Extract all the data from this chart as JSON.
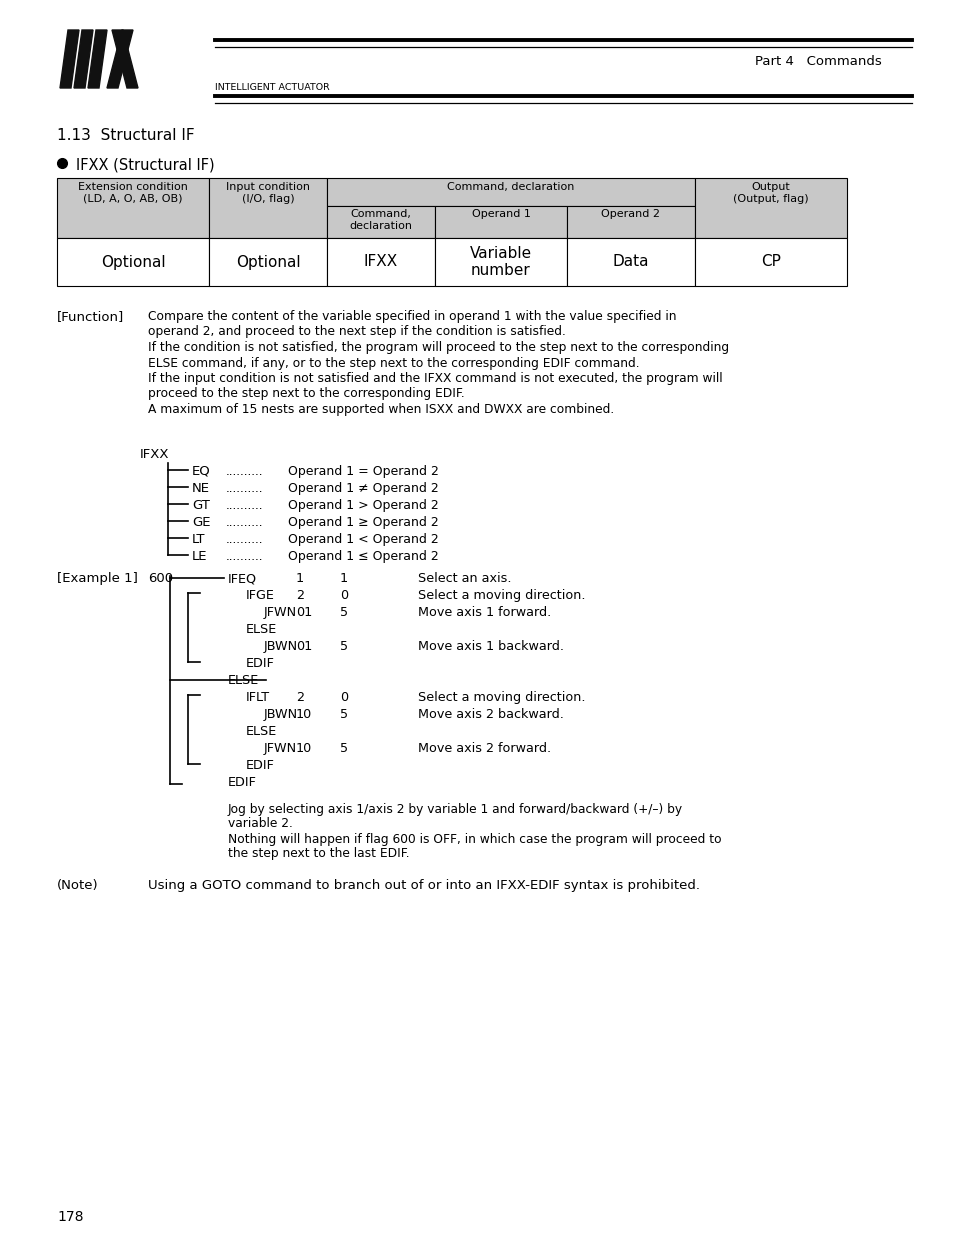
{
  "bg_color": "#ffffff",
  "title_part": "Part 4   Commands",
  "section": "1.13  Structural IF",
  "bullet_title": "IFXX (Structural IF)",
  "table_data_row": [
    "Optional",
    "Optional",
    "IFXX",
    "Variable\nnumber",
    "Data",
    "CP"
  ],
  "function_label": "[Function]",
  "function_text": [
    "Compare the content of the variable specified in operand 1 with the value specified in",
    "operand 2, and proceed to the next step if the condition is satisfied.",
    "If the condition is not satisfied, the program will proceed to the step next to the corresponding",
    "ELSE command, if any, or to the step next to the corresponding EDIF command.",
    "If the input condition is not satisfied and the IFXX command is not executed, the program will",
    "proceed to the step next to the corresponding EDIF.",
    "A maximum of 15 nests are supported when ISXX and DWXX are combined."
  ],
  "ifxx_label": "IFXX",
  "ifxx_items": [
    [
      "EQ",
      "..........",
      "Operand 1 = Operand 2"
    ],
    [
      "NE",
      "..........",
      "Operand 1 ≠ Operand 2"
    ],
    [
      "GT",
      "..........",
      "Operand 1 > Operand 2"
    ],
    [
      "GE",
      "..........",
      "Operand 1 ≥ Operand 2"
    ],
    [
      "LT",
      "..........",
      "Operand 1 < Operand 2"
    ],
    [
      "LE",
      "..........",
      "Operand 1 ≤ Operand 2"
    ]
  ],
  "example_label": "[Example 1]",
  "example_lines": [
    {
      "indent": 0,
      "flag": "600",
      "cmd": "IFEQ",
      "op1": "1",
      "op2": "1",
      "comment": "Select an axis."
    },
    {
      "indent": 1,
      "flag": "",
      "cmd": "IFGE",
      "op1": "2",
      "op2": "0",
      "comment": "Select a moving direction."
    },
    {
      "indent": 2,
      "flag": "",
      "cmd": "JFWN",
      "op1": "01",
      "op2": "5",
      "comment": "Move axis 1 forward."
    },
    {
      "indent": 1,
      "flag": "",
      "cmd": "ELSE",
      "op1": "",
      "op2": "",
      "comment": ""
    },
    {
      "indent": 2,
      "flag": "",
      "cmd": "JBWN",
      "op1": "01",
      "op2": "5",
      "comment": "Move axis 1 backward."
    },
    {
      "indent": 1,
      "flag": "",
      "cmd": "EDIF",
      "op1": "",
      "op2": "",
      "comment": ""
    },
    {
      "indent": 0,
      "flag": "",
      "cmd": "ELSE",
      "op1": "",
      "op2": "",
      "comment": ""
    },
    {
      "indent": 1,
      "flag": "",
      "cmd": "IFLT",
      "op1": "2",
      "op2": "0",
      "comment": "Select a moving direction."
    },
    {
      "indent": 2,
      "flag": "",
      "cmd": "JBWN",
      "op1": "10",
      "op2": "5",
      "comment": "Move axis 2 backward."
    },
    {
      "indent": 1,
      "flag": "",
      "cmd": "ELSE",
      "op1": "",
      "op2": "",
      "comment": ""
    },
    {
      "indent": 2,
      "flag": "",
      "cmd": "JFWN",
      "op1": "10",
      "op2": "5",
      "comment": "Move axis 2 forward."
    },
    {
      "indent": 1,
      "flag": "",
      "cmd": "EDIF",
      "op1": "",
      "op2": "",
      "comment": ""
    },
    {
      "indent": 0,
      "flag": "",
      "cmd": "EDIF",
      "op1": "",
      "op2": "",
      "comment": ""
    }
  ],
  "example_note1": "Jog by selecting axis 1/axis 2 by variable 1 and forward/backward (+/–) by",
  "example_note2": "variable 2.",
  "example_note3": "Nothing will happen if flag 600 is OFF, in which case the program will proceed to",
  "example_note4": "the step next to the last EDIF.",
  "note_label": "(Note)",
  "note_text": "Using a GOTO command to branch out of or into an IFXX-EDIF syntax is prohibited.",
  "page_number": "178",
  "header_gray": "#c8c8c8"
}
